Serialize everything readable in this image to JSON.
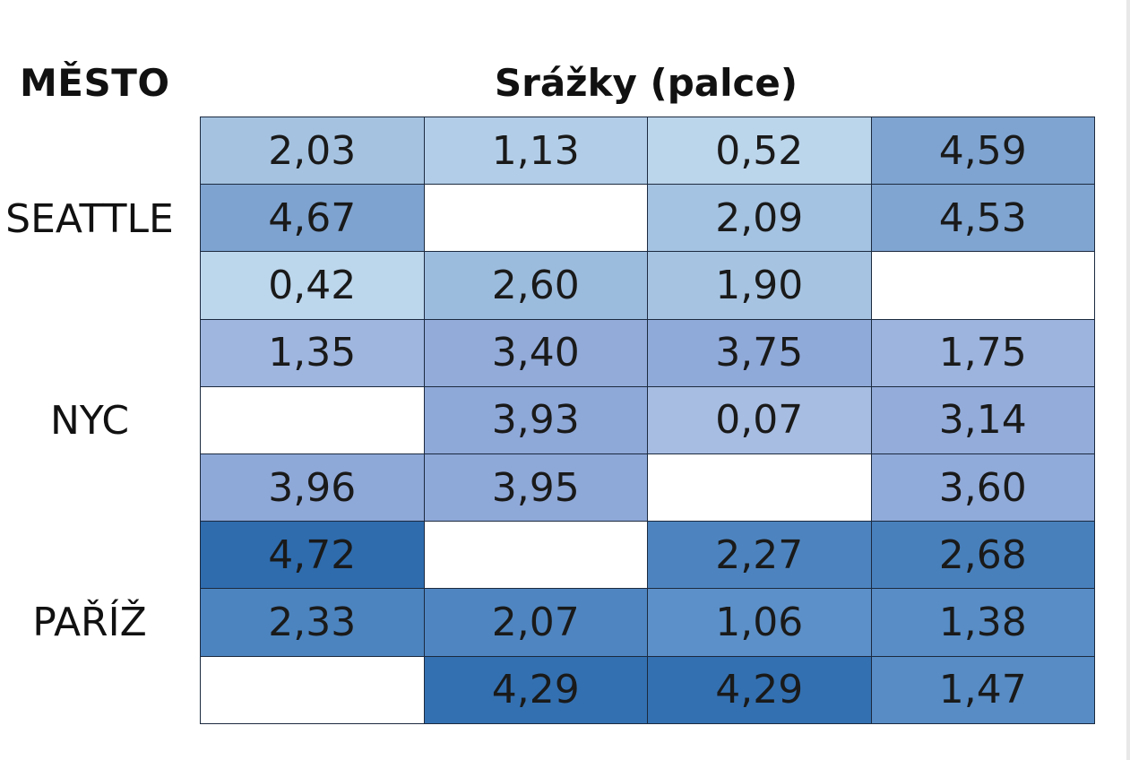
{
  "header": {
    "city": "MĚSTO",
    "values": "Srážky (palce)"
  },
  "chart_data": {
    "type": "heatmap",
    "title": "",
    "column_headers": [
      "MĚSTO",
      "Srážky (palce)"
    ],
    "groups": [
      "SEATTLE",
      "NYC",
      "PAŘÍŽ"
    ],
    "rows": [
      {
        "city": "SEATTLE",
        "values": [
          "2,03",
          "1,13",
          "0,52",
          "4,59"
        ]
      },
      {
        "city": "SEATTLE",
        "values": [
          "4,67",
          null,
          "2,09",
          "4,53"
        ]
      },
      {
        "city": "SEATTLE",
        "values": [
          "0,42",
          "2,60",
          "1,90",
          null
        ]
      },
      {
        "city": "NYC",
        "values": [
          "1,35",
          "3,40",
          "3,75",
          "1,75"
        ]
      },
      {
        "city": "NYC",
        "values": [
          null,
          "3,93",
          "0,07",
          "3,14"
        ]
      },
      {
        "city": "NYC",
        "values": [
          "3,96",
          "3,95",
          null,
          "3,60"
        ]
      },
      {
        "city": "PAŘÍŽ",
        "values": [
          "4,72",
          null,
          "2,27",
          "2,68"
        ]
      },
      {
        "city": "PAŘÍŽ",
        "values": [
          "2,33",
          "2,07",
          "1,06",
          "1,38"
        ]
      },
      {
        "city": "PAŘÍŽ",
        "values": [
          null,
          "4,29",
          "4,29",
          "1,47"
        ]
      }
    ],
    "colors": {
      "empty": "#ffffff",
      "SEATTLE": {
        "light": "#bcd6ec",
        "dark": "#7ea3d0"
      },
      "NYC": {
        "light": "#a7bde2",
        "dark": "#8ea8d8"
      },
      "PAŘÍŽ": {
        "light": "#5c90c8",
        "dark": "#2e6cae"
      }
    }
  }
}
